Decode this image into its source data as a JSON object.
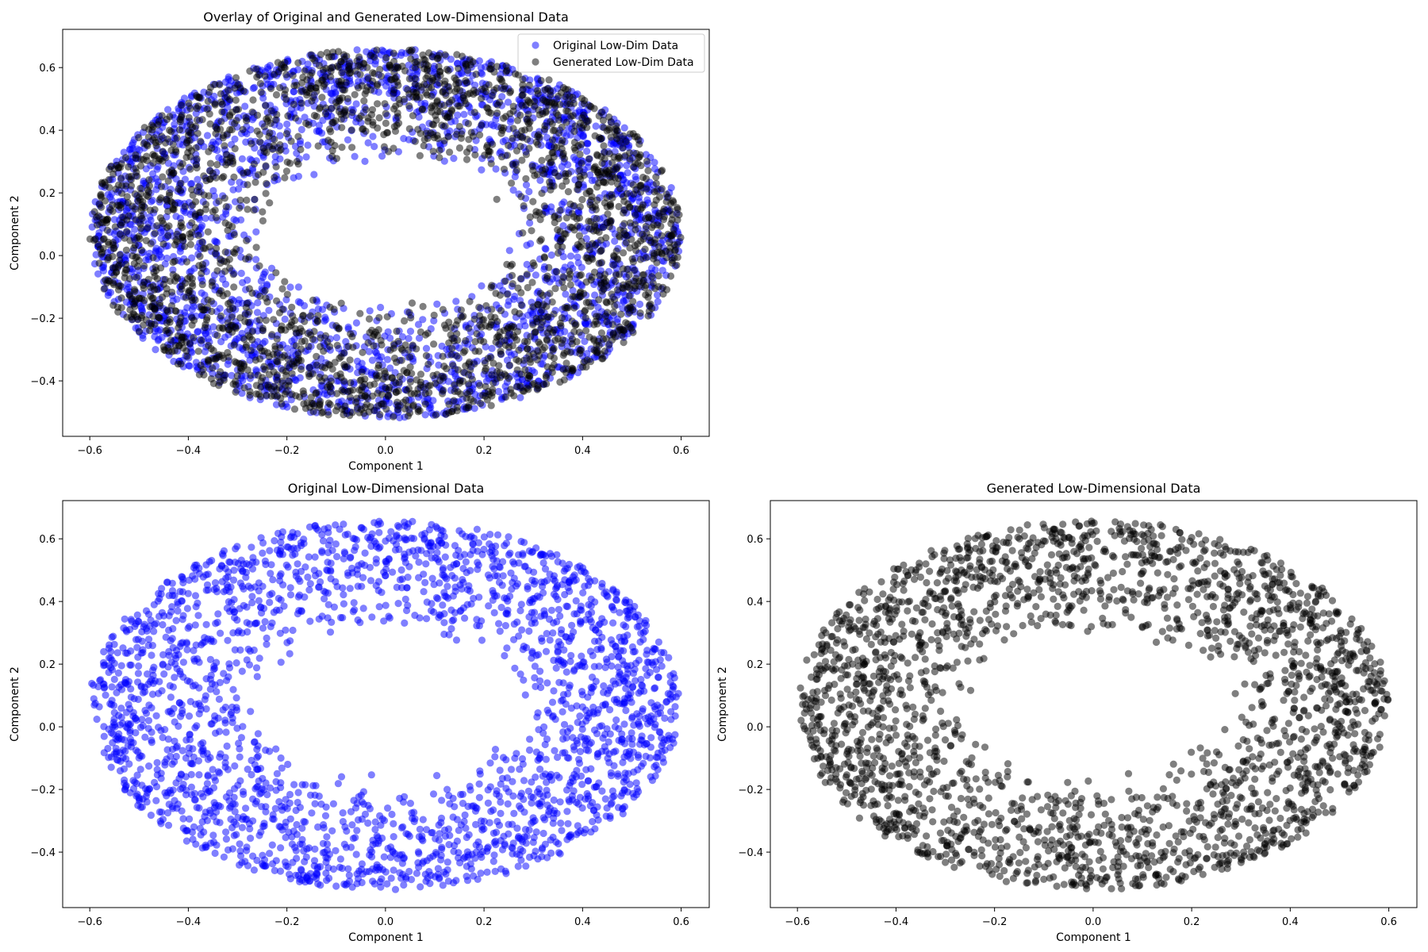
{
  "chart_data": [
    {
      "type": "scatter",
      "panel": "overlay",
      "title": "Overlay of Original and Generated Low-Dimensional Data",
      "xlabel": "Component 1",
      "ylabel": "Component 2",
      "xlim": [
        -0.655,
        0.657
      ],
      "ylim": [
        -0.577,
        0.722
      ],
      "xticks": [
        -0.6,
        -0.4,
        -0.2,
        0.0,
        0.2,
        0.4,
        0.6
      ],
      "yticks": [
        -0.4,
        -0.2,
        0.0,
        0.2,
        0.4,
        0.6
      ],
      "xtick_labels": [
        "−0.6",
        "−0.4",
        "−0.2",
        "0.0",
        "0.2",
        "0.4",
        "0.6"
      ],
      "ytick_labels": [
        "−0.4",
        "−0.2",
        "0.0",
        "0.2",
        "0.4",
        "0.6"
      ],
      "grid": false,
      "legend_position": "top-right",
      "legend": [
        "Original Low-Dim Data",
        "Generated Low-Dim Data"
      ],
      "series": [
        {
          "name": "Original Low-Dim Data",
          "color": "#0000ff",
          "alpha": 0.5,
          "shape": "annulus",
          "center": [
            0.0,
            0.07
          ],
          "outer_radii": [
            0.6,
            0.59
          ],
          "inner_radii": [
            0.25,
            0.22
          ],
          "count": 2400
        },
        {
          "name": "Generated Low-Dim Data",
          "color": "#000000",
          "alpha": 0.5,
          "shape": "annulus",
          "center": [
            0.0,
            0.07
          ],
          "outer_radii": [
            0.6,
            0.59
          ],
          "inner_radii": [
            0.25,
            0.22
          ],
          "count": 2400
        }
      ]
    },
    {
      "type": "scatter",
      "panel": "original",
      "title": "Original Low-Dimensional Data",
      "xlabel": "Component 1",
      "ylabel": "Component 2",
      "xlim": [
        -0.655,
        0.657
      ],
      "ylim": [
        -0.577,
        0.722
      ],
      "xticks": [
        -0.6,
        -0.4,
        -0.2,
        0.0,
        0.2,
        0.4,
        0.6
      ],
      "yticks": [
        -0.4,
        -0.2,
        0.0,
        0.2,
        0.4,
        0.6
      ],
      "xtick_labels": [
        "−0.6",
        "−0.4",
        "−0.2",
        "0.0",
        "0.2",
        "0.4",
        "0.6"
      ],
      "ytick_labels": [
        "−0.4",
        "−0.2",
        "0.0",
        "0.2",
        "0.4",
        "0.6"
      ],
      "grid": false,
      "series": [
        {
          "color": "#0000ff",
          "alpha": 0.5,
          "shape": "annulus",
          "center": [
            0.0,
            0.07
          ],
          "outer_radii": [
            0.6,
            0.59
          ],
          "inner_radii": [
            0.25,
            0.22
          ],
          "count": 2400
        }
      ]
    },
    {
      "type": "scatter",
      "panel": "generated",
      "title": "Generated Low-Dimensional Data",
      "xlabel": "Component 1",
      "ylabel": "Component 2",
      "xlim": [
        -0.655,
        0.657
      ],
      "ylim": [
        -0.577,
        0.722
      ],
      "xticks": [
        -0.6,
        -0.4,
        -0.2,
        0.0,
        0.2,
        0.4,
        0.6
      ],
      "yticks": [
        -0.4,
        -0.2,
        0.0,
        0.2,
        0.4,
        0.6
      ],
      "xtick_labels": [
        "−0.6",
        "−0.4",
        "−0.2",
        "0.0",
        "0.2",
        "0.4",
        "0.6"
      ],
      "ytick_labels": [
        "−0.4",
        "−0.2",
        "0.0",
        "0.2",
        "0.4",
        "0.6"
      ],
      "grid": false,
      "series": [
        {
          "color": "#000000",
          "alpha": 0.5,
          "shape": "annulus",
          "center": [
            0.0,
            0.07
          ],
          "outer_radii": [
            0.6,
            0.59
          ],
          "inner_radii": [
            0.25,
            0.22
          ],
          "count": 2400
        }
      ]
    }
  ]
}
